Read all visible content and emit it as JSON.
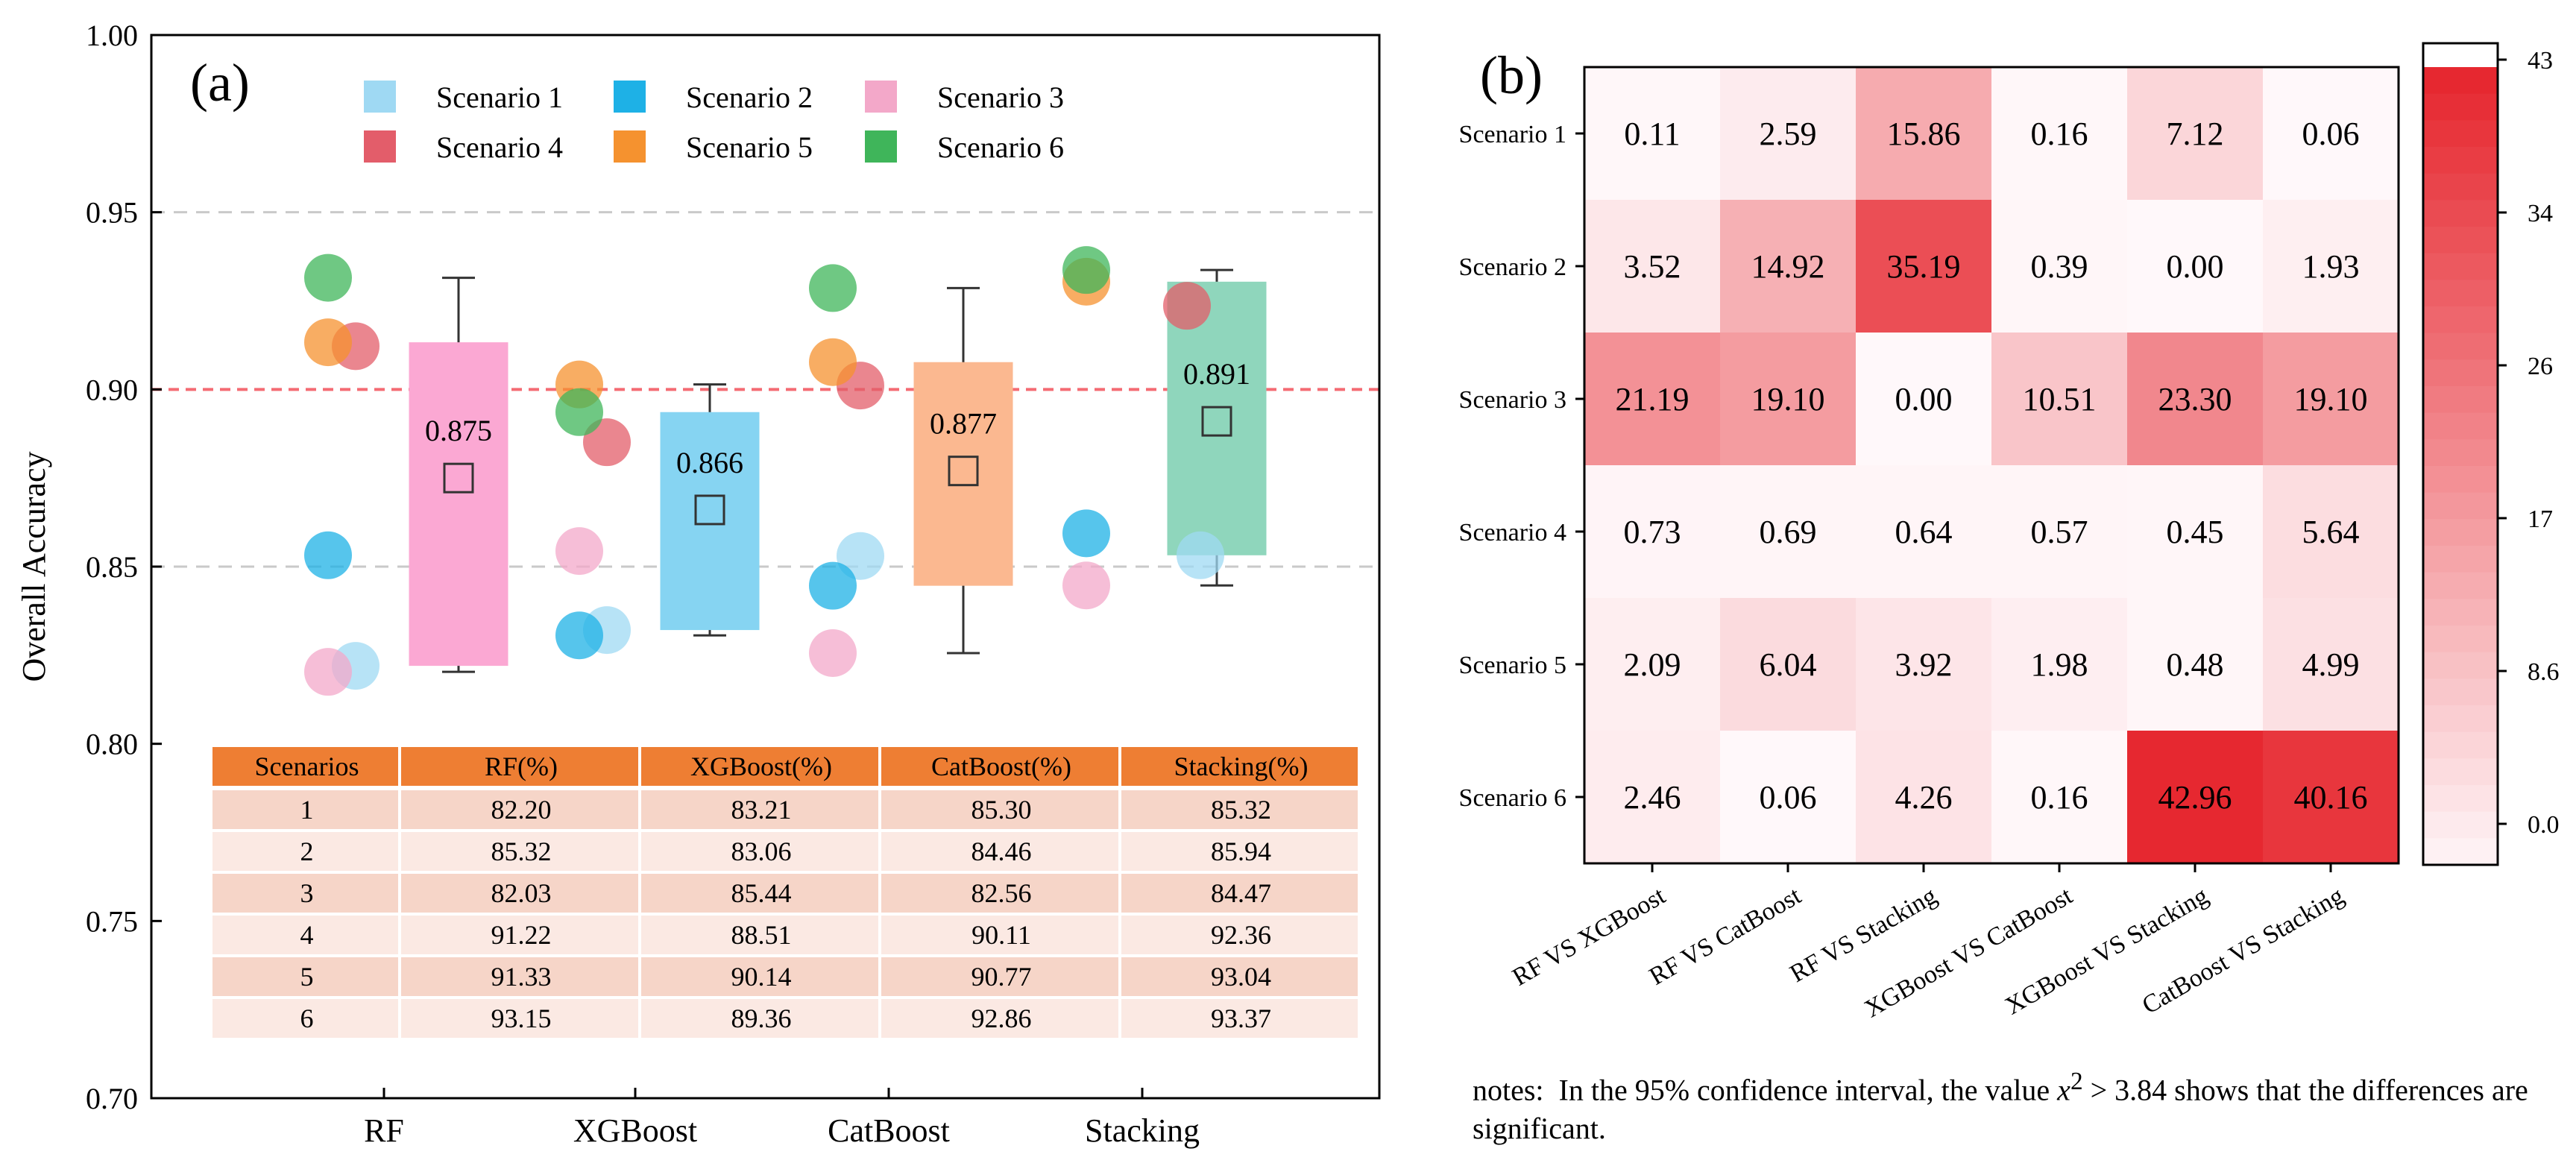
{
  "panel_a": {
    "label": "(a)",
    "ylabel": "Overall Accuracy",
    "legend": [
      "Scenario 1",
      "Scenario 2",
      "Scenario 3",
      "Scenario 4",
      "Scenario 5",
      "Scenario 6"
    ],
    "legend_colors": [
      "#9fd9f3",
      "#1eb1e6",
      "#f3a8c9",
      "#e35d6a",
      "#f5922f",
      "#3fb55a"
    ],
    "box_colors": [
      "#fba8d3",
      "#86d4f2",
      "#fbb890",
      "#8fd6bc"
    ],
    "table": {
      "headers": [
        "Scenarios",
        "RF(%)",
        "XGBoost(%)",
        "CatBoost(%)",
        "Stacking(%)"
      ],
      "rows": [
        [
          "1",
          "82.20",
          "83.21",
          "85.30",
          "85.32"
        ],
        [
          "2",
          "85.32",
          "83.06",
          "84.46",
          "85.94"
        ],
        [
          "3",
          "82.03",
          "85.44",
          "82.56",
          "84.47"
        ],
        [
          "4",
          "91.22",
          "88.51",
          "90.11",
          "92.36"
        ],
        [
          "5",
          "91.33",
          "90.14",
          "90.77",
          "93.04"
        ],
        [
          "6",
          "93.15",
          "89.36",
          "92.86",
          "93.37"
        ]
      ]
    }
  },
  "panel_b": {
    "label": "(b)",
    "colorbar_ticks": [
      "43",
      "34",
      "26",
      "17",
      "8.6",
      "0.0"
    ]
  },
  "notes": {
    "prefix": "notes:  In the 95% confidence interval, the value ",
    "variable": "x",
    "superscript": "2",
    "suffix": " > 3.84 shows that the differences are significant."
  },
  "chart_data": [
    {
      "type": "box",
      "title": "(a)",
      "ylabel": "Overall Accuracy",
      "ylim": [
        0.7,
        1.0
      ],
      "yticks": [
        "0.70",
        "0.75",
        "0.80",
        "0.85",
        "0.90",
        "0.95",
        "1.00"
      ],
      "categories": [
        "RF",
        "XGBoost",
        "CatBoost",
        "Stacking"
      ],
      "reference_line": 0.9,
      "means": [
        0.875,
        0.866,
        0.877,
        0.891
      ],
      "mean_labels": [
        "0.875",
        "0.866",
        "0.877",
        "0.891"
      ],
      "series": [
        {
          "name": "Scenario 1",
          "values": [
            0.822,
            0.8321,
            0.853,
            0.8532
          ]
        },
        {
          "name": "Scenario 2",
          "values": [
            0.8532,
            0.8306,
            0.8446,
            0.8594
          ]
        },
        {
          "name": "Scenario 3",
          "values": [
            0.8203,
            0.8544,
            0.8256,
            0.8447
          ]
        },
        {
          "name": "Scenario 4",
          "values": [
            0.9122,
            0.8851,
            0.9011,
            0.9236
          ]
        },
        {
          "name": "Scenario 5",
          "values": [
            0.9133,
            0.9014,
            0.9077,
            0.9304
          ]
        },
        {
          "name": "Scenario 6",
          "values": [
            0.9315,
            0.8936,
            0.9286,
            0.9337
          ]
        }
      ]
    },
    {
      "type": "heatmap",
      "title": "(b)",
      "rows": [
        "Scenario 1",
        "Scenario 2",
        "Scenario 3",
        "Scenario 4",
        "Scenario 5",
        "Scenario 6"
      ],
      "columns": [
        "RF VS XGBoost",
        "RF VS CatBoost",
        "RF VS Stacking",
        "XGBoost VS CatBoost",
        "XGBoost VS Stacking",
        "CatBoost VS Stacking"
      ],
      "values": [
        [
          0.11,
          2.59,
          15.86,
          0.16,
          7.12,
          0.06
        ],
        [
          3.52,
          14.92,
          35.19,
          0.39,
          0.0,
          1.93
        ],
        [
          21.19,
          19.1,
          0.0,
          10.51,
          23.3,
          19.1
        ],
        [
          0.73,
          0.69,
          0.64,
          0.57,
          0.45,
          5.64
        ],
        [
          2.09,
          6.04,
          3.92,
          1.98,
          0.48,
          4.99
        ],
        [
          2.46,
          0.06,
          4.26,
          0.16,
          42.96,
          40.16
        ]
      ],
      "value_labels": [
        [
          "0.11",
          "2.59",
          "15.86",
          "0.16",
          "7.12",
          "0.06"
        ],
        [
          "3.52",
          "14.92",
          "35.19",
          "0.39",
          "0.00",
          "1.93"
        ],
        [
          "21.19",
          "19.10",
          "0.00",
          "10.51",
          "23.30",
          "19.10"
        ],
        [
          "0.73",
          "0.69",
          "0.64",
          "0.57",
          "0.45",
          "5.64"
        ],
        [
          "2.09",
          "6.04",
          "3.92",
          "1.98",
          "0.48",
          "4.99"
        ],
        [
          "2.46",
          "0.06",
          "4.26",
          "0.16",
          "42.96",
          "40.16"
        ]
      ],
      "colorbar_range": [
        0.0,
        43
      ]
    }
  ]
}
